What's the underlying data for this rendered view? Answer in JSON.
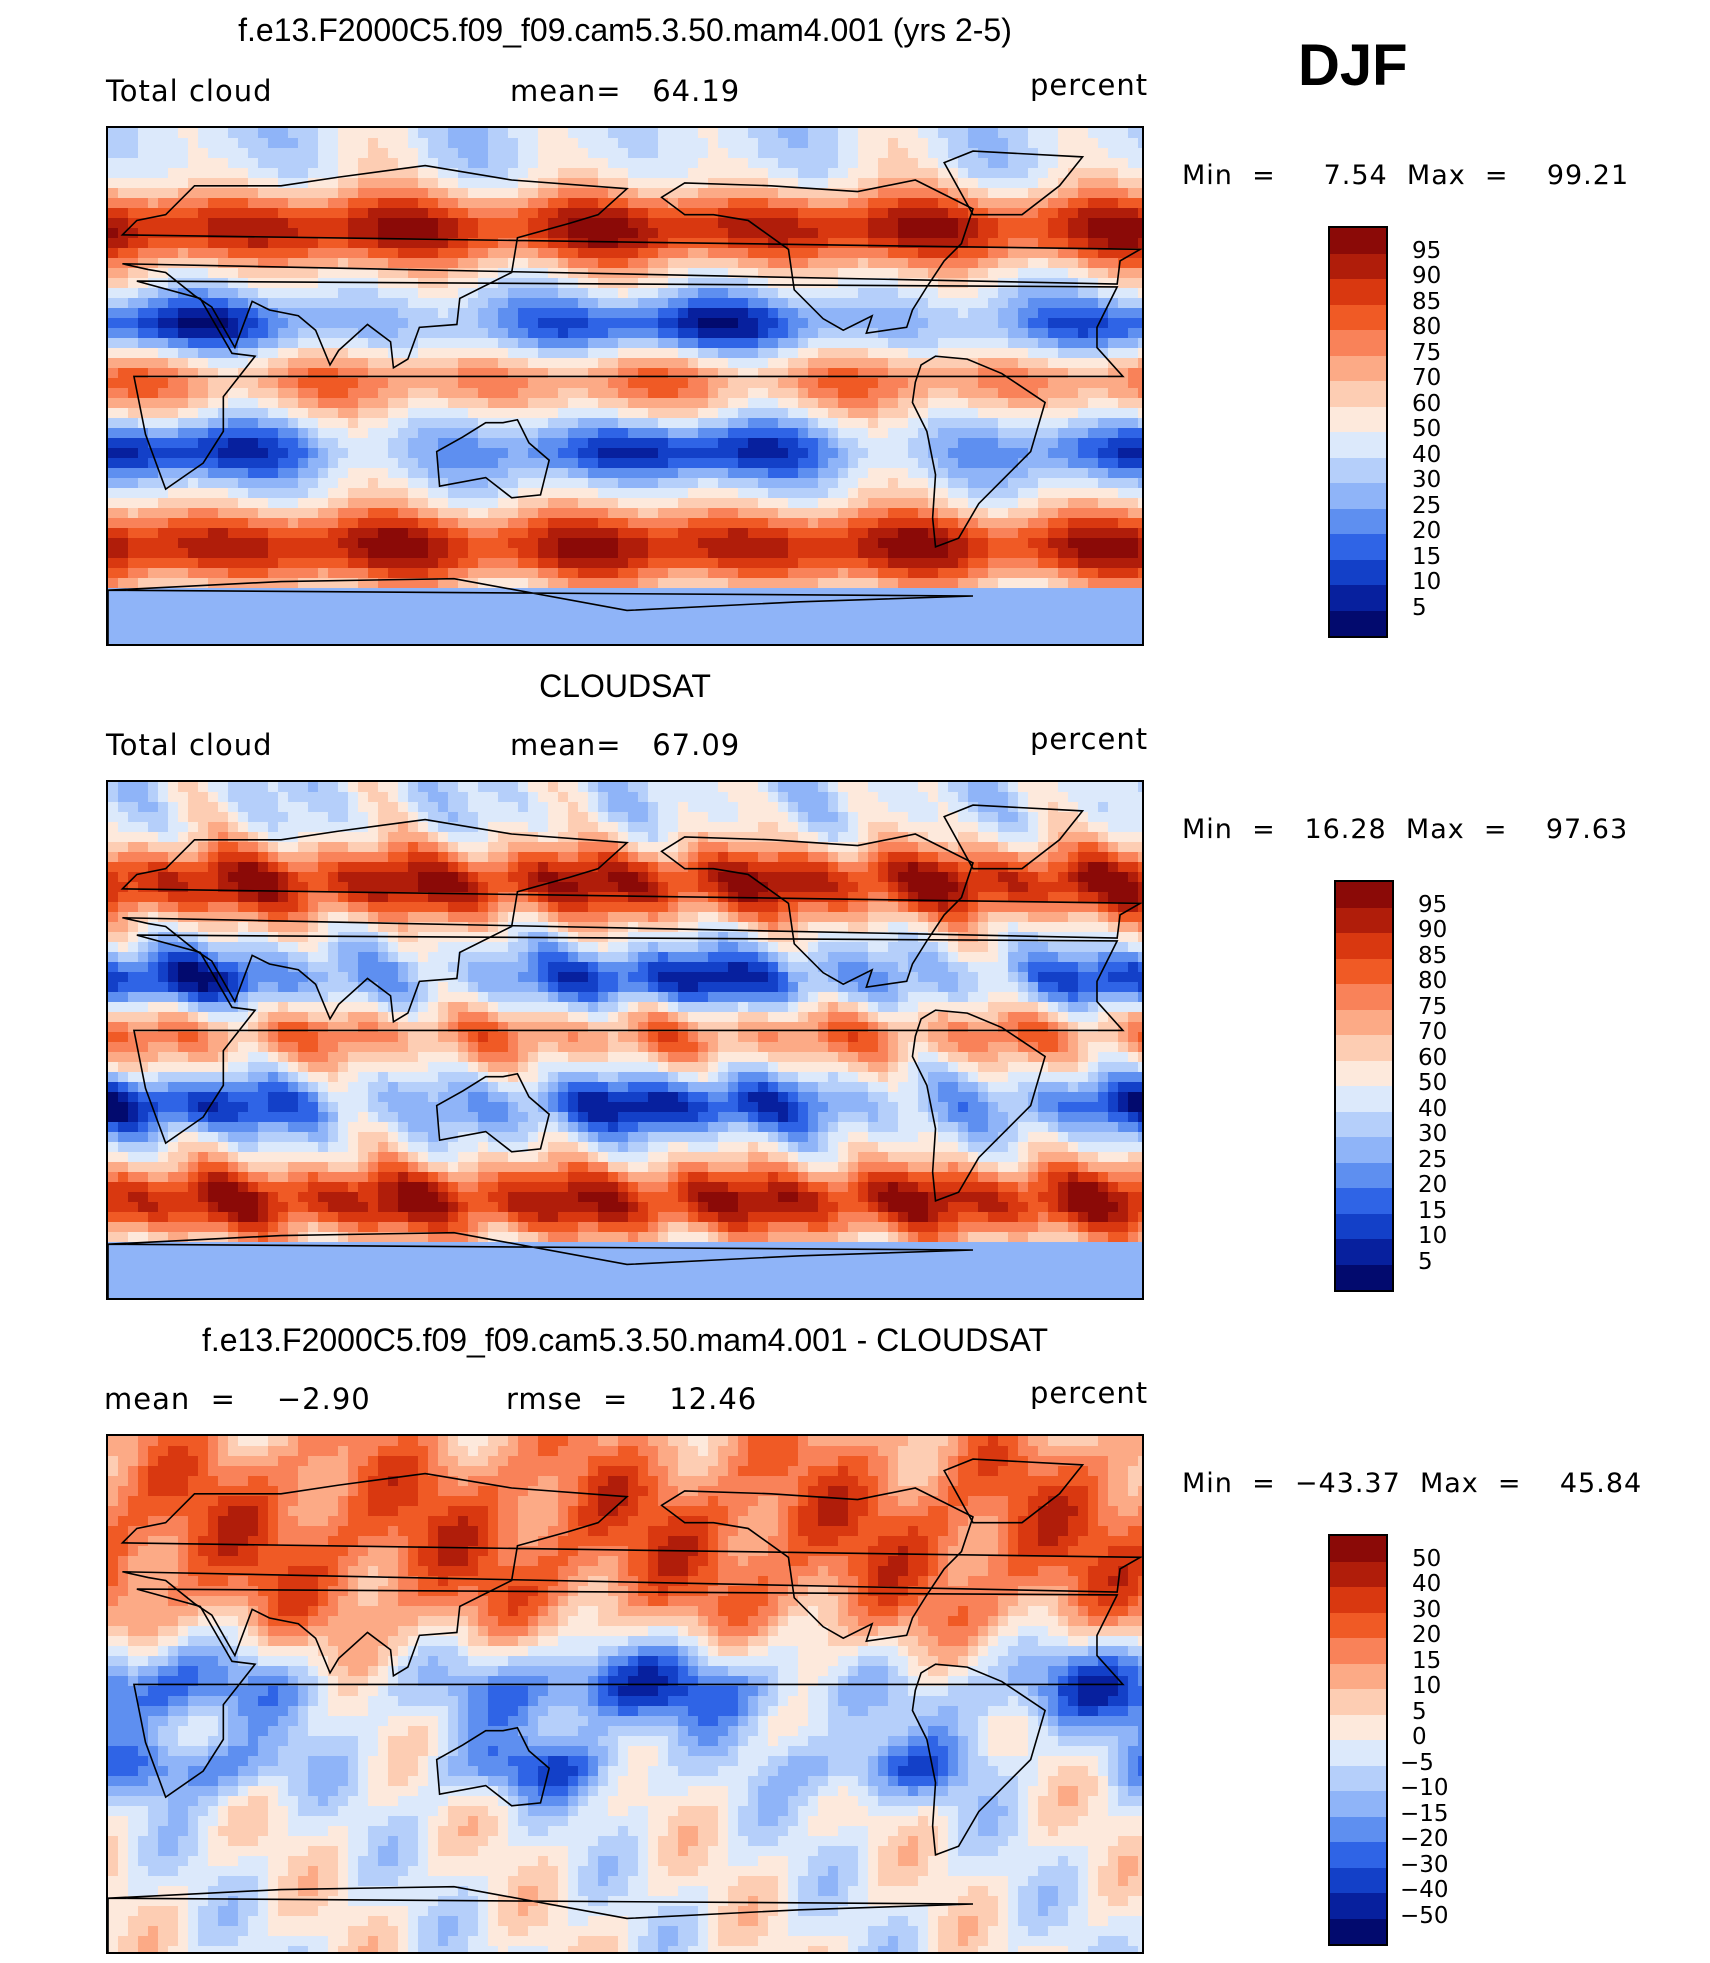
{
  "season": "DJF",
  "panels": [
    {
      "id": "model",
      "title": "f.e13.F2000C5.f09_f09.cam5.3.50.mam4.001 (yrs 2-5)",
      "left_label": "Total cloud",
      "center_label": "mean=   64.19",
      "units": "percent",
      "stats": "Min  =     7.54  Max  =    99.21",
      "levels": [
        "95",
        "90",
        "85",
        "80",
        "75",
        "70",
        "60",
        "50",
        "40",
        "30",
        "25",
        "20",
        "15",
        "10",
        "5"
      ]
    },
    {
      "id": "obs",
      "title": "CLOUDSAT",
      "left_label": "Total cloud",
      "center_label": "mean=   67.09",
      "units": "percent",
      "stats": "Min  =   16.28  Max  =    97.63",
      "levels": [
        "95",
        "90",
        "85",
        "80",
        "75",
        "70",
        "60",
        "50",
        "40",
        "30",
        "25",
        "20",
        "15",
        "10",
        "5"
      ]
    },
    {
      "id": "diff",
      "title": "f.e13.F2000C5.f09_f09.cam5.3.50.mam4.001 - CLOUDSAT",
      "left_label": "mean  =    −2.90",
      "center_label": "rmse  =    12.46",
      "units": "percent",
      "stats": "Min  =  −43.37  Max  =    45.84",
      "levels": [
        "50",
        "40",
        "30",
        "20",
        "15",
        "10",
        "5",
        "0",
        "−5",
        "−10",
        "−15",
        "−20",
        "−30",
        "−40",
        "−50"
      ]
    }
  ],
  "colors": {
    "scale": [
      "#8b0a07",
      "#b01d0a",
      "#d93810",
      "#f05a25",
      "#f98259",
      "#fcaa86",
      "#fdcdb3",
      "#fde9dc",
      "#dce9fb",
      "#b5cffa",
      "#8fb4f8",
      "#5e8ff0",
      "#2f64e6",
      "#1340c8",
      "#07209e",
      "#020a6e"
    ],
    "land": "#000000",
    "frame": "#000000"
  }
}
